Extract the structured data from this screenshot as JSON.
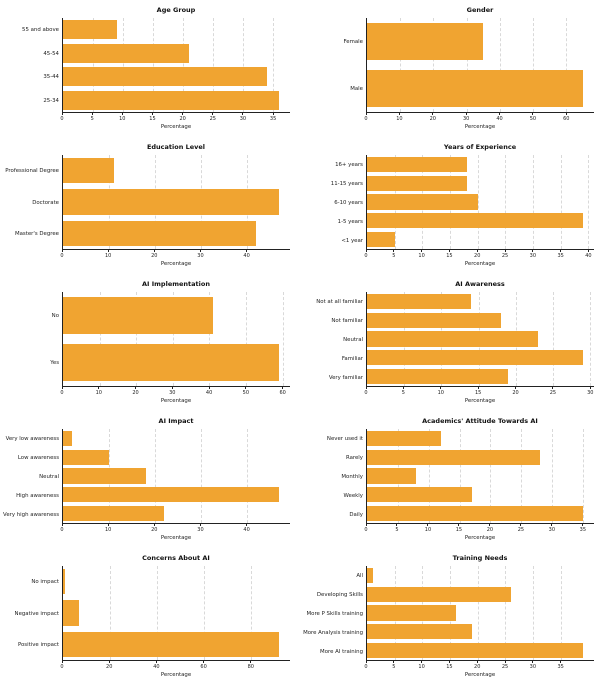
{
  "colors": {
    "bar": "#F0A431",
    "gridline": "#d9d9d9",
    "axis": "#222222",
    "background": "#ffffff"
  },
  "chart_data": [
    {
      "type": "bar",
      "orientation": "horizontal",
      "title": "Age Group",
      "category_order": "top-to-bottom",
      "categories": [
        "55 and above",
        "45-54",
        "35-44",
        "25-34"
      ],
      "values": [
        9,
        21,
        34,
        36
      ],
      "xlabel": "Percentage",
      "xticks": [
        0,
        5,
        10,
        15,
        20,
        25,
        30,
        35
      ],
      "xlim": [
        0,
        37.8
      ],
      "grid": "vertical-dashed"
    },
    {
      "type": "bar",
      "orientation": "horizontal",
      "title": "Gender",
      "category_order": "top-to-bottom",
      "categories": [
        "Female",
        "Male"
      ],
      "values": [
        35,
        65
      ],
      "xlabel": "Percentage",
      "xticks": [
        0,
        10,
        20,
        30,
        40,
        50,
        60
      ],
      "xlim": [
        0,
        68.3
      ],
      "grid": "vertical-dashed"
    },
    {
      "type": "bar",
      "orientation": "horizontal",
      "title": "Education Level",
      "category_order": "top-to-bottom",
      "categories": [
        "Professional Degree",
        "Doctorate",
        "Master's Degree"
      ],
      "values": [
        11,
        47,
        42
      ],
      "xlabel": "Percentage",
      "xticks": [
        0,
        10,
        20,
        30,
        40
      ],
      "xlim": [
        0,
        49.4
      ],
      "grid": "vertical-dashed"
    },
    {
      "type": "bar",
      "orientation": "horizontal",
      "title": "Years of Experience",
      "category_order": "top-to-bottom",
      "categories": [
        "16+ years",
        "11-15 years",
        "6-10 years",
        "1-5 years",
        "<1 year"
      ],
      "values": [
        18,
        18,
        20,
        39,
        5
      ],
      "xlabel": "Percentage",
      "xticks": [
        0,
        5,
        10,
        15,
        20,
        25,
        30,
        35,
        40
      ],
      "xlim": [
        0,
        41
      ],
      "grid": "vertical-dashed"
    },
    {
      "type": "bar",
      "orientation": "horizontal",
      "title": "AI Implementation",
      "category_order": "top-to-bottom",
      "categories": [
        "No",
        "Yes"
      ],
      "values": [
        41,
        59
      ],
      "xlabel": "Percentage",
      "xticks": [
        0,
        10,
        20,
        30,
        40,
        50,
        60
      ],
      "xlim": [
        0,
        62
      ],
      "grid": "vertical-dashed"
    },
    {
      "type": "bar",
      "orientation": "horizontal",
      "title": "AI Awareness",
      "category_order": "top-to-bottom",
      "categories": [
        "Not at all familiar",
        "Not familiar",
        "Neutral",
        "Familiar",
        "Very familiar"
      ],
      "values": [
        14,
        18,
        23,
        29,
        19
      ],
      "xlabel": "Percentage",
      "xticks": [
        0,
        5,
        10,
        15,
        20,
        25,
        30
      ],
      "xlim": [
        0,
        30.5
      ],
      "grid": "vertical-dashed"
    },
    {
      "type": "bar",
      "orientation": "horizontal",
      "title": "AI Impact",
      "category_order": "top-to-bottom",
      "categories": [
        "Very low awareness",
        "Low awareness",
        "Neutral",
        "High awareness",
        "Very high awareness"
      ],
      "values": [
        2,
        10,
        18,
        47,
        22
      ],
      "xlabel": "Percentage",
      "xticks": [
        0,
        10,
        20,
        30,
        40
      ],
      "xlim": [
        0,
        49.4
      ],
      "grid": "vertical-dashed"
    },
    {
      "type": "bar",
      "orientation": "horizontal",
      "title": "Academics' Attitude Towards AI",
      "category_order": "top-to-bottom",
      "categories": [
        "Never used it",
        "Rarely",
        "Monthly",
        "Weekly",
        "Daily"
      ],
      "values": [
        12,
        28,
        8,
        17,
        35
      ],
      "xlabel": "Percentage",
      "xticks": [
        0,
        5,
        10,
        15,
        20,
        25,
        30,
        35
      ],
      "xlim": [
        0,
        36.8
      ],
      "grid": "vertical-dashed"
    },
    {
      "type": "bar",
      "orientation": "horizontal",
      "title": "Concerns About AI",
      "category_order": "top-to-bottom",
      "categories": [
        "No impact",
        "Negative impact",
        "Positive impact"
      ],
      "values": [
        1,
        7,
        92
      ],
      "xlabel": "Percentage",
      "xticks": [
        0,
        20,
        40,
        60,
        80
      ],
      "xlim": [
        0,
        96.6
      ],
      "grid": "vertical-dashed"
    },
    {
      "type": "bar",
      "orientation": "horizontal",
      "title": "Training Needs",
      "category_order": "top-to-bottom",
      "categories": [
        "All",
        "Developing Skills",
        "More P Skills training",
        "More Analysis training",
        "More AI training"
      ],
      "values": [
        1,
        26,
        16,
        19,
        39
      ],
      "xlabel": "Percentage",
      "xticks": [
        0,
        5,
        10,
        15,
        20,
        25,
        30,
        35
      ],
      "xlim": [
        0,
        41
      ],
      "grid": "vertical-dashed"
    }
  ]
}
